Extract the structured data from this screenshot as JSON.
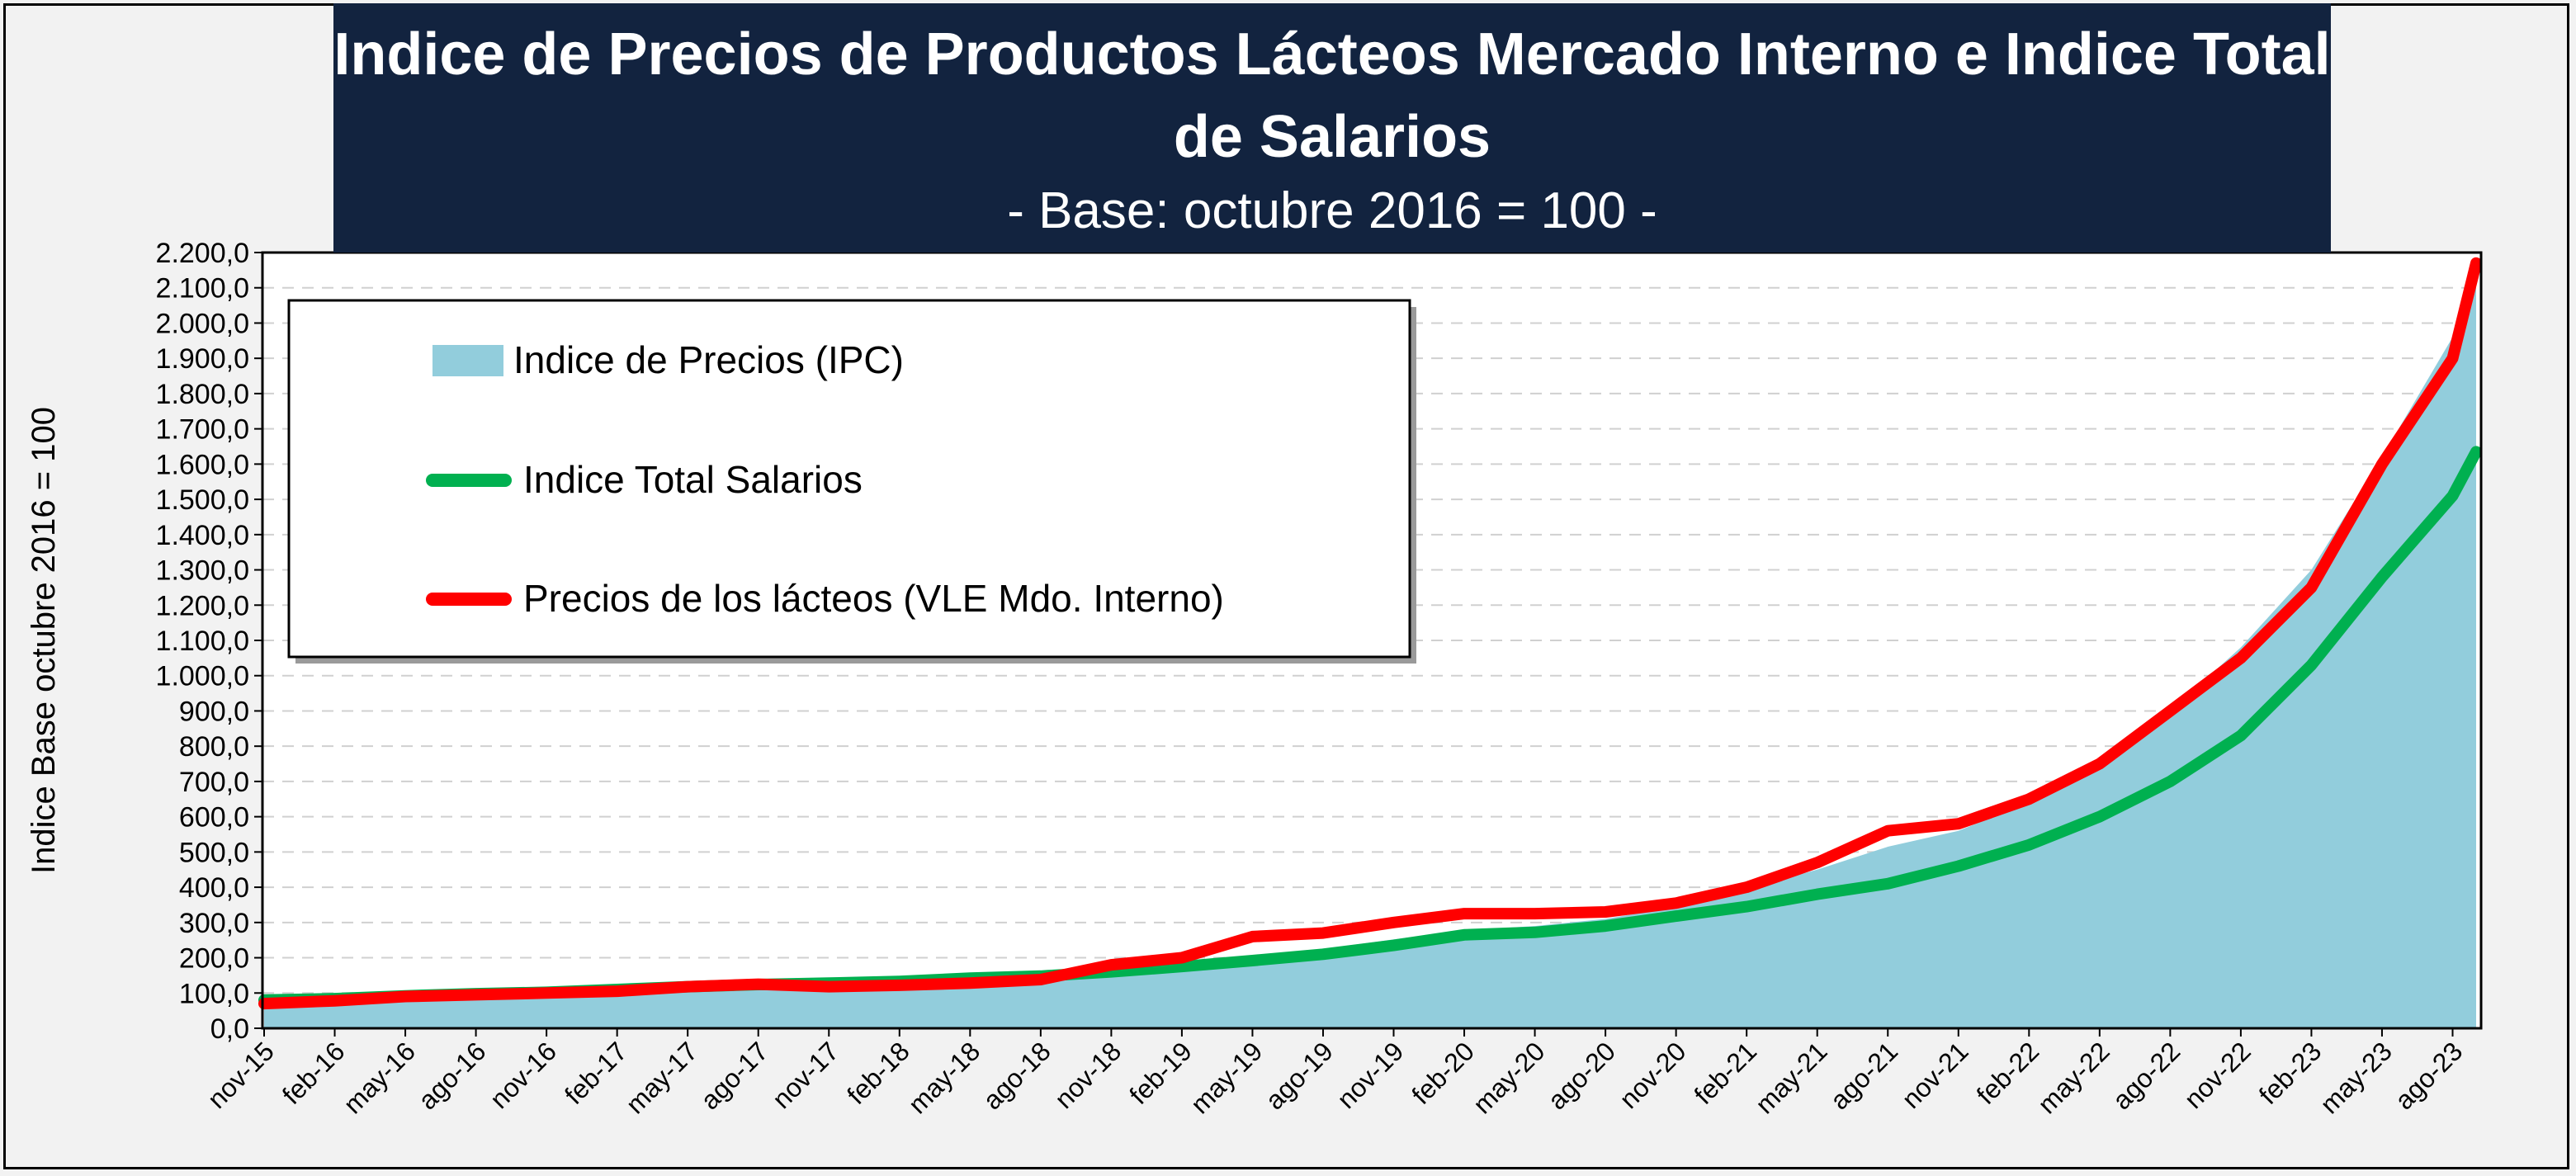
{
  "title": "Indice de Precios de Productos Lácteos Mercado Interno e Indice Total de Salarios",
  "subtitle": "- Base: octubre 2016 = 100 -",
  "colors": {
    "title_bg": "#12233f",
    "ipc_fill": "#92cddc",
    "salarios": "#00b050",
    "lacteos": "#ff0000",
    "grid": "#d0d0d0"
  },
  "chart_data": {
    "type": "area",
    "ylabel": "Indice Base octubre 2016 = 100",
    "ylim": [
      0,
      2200
    ],
    "yticks": [
      "0,0",
      "100,0",
      "200,0",
      "300,0",
      "400,0",
      "500,0",
      "600,0",
      "700,0",
      "800,0",
      "900,0",
      "1.000,0",
      "1.100,0",
      "1.200,0",
      "1.300,0",
      "1.400,0",
      "1.500,0",
      "1.600,0",
      "1.700,0",
      "1.800,0",
      "1.900,0",
      "2.000,0",
      "2.100,0",
      "2.200,0"
    ],
    "xticks": [
      "nov-15",
      "feb-16",
      "may-16",
      "ago-16",
      "nov-16",
      "feb-17",
      "may-17",
      "ago-17",
      "nov-17",
      "feb-18",
      "may-18",
      "ago-18",
      "nov-18",
      "feb-19",
      "may-19",
      "ago-19",
      "nov-19",
      "feb-20",
      "may-20",
      "ago-20",
      "nov-20",
      "feb-21",
      "may-21",
      "ago-21",
      "nov-21",
      "feb-22",
      "may-22",
      "ago-22",
      "nov-22",
      "feb-23",
      "may-23",
      "ago-23"
    ],
    "x_start": "nov-15",
    "x_end": "sep-23",
    "grid": true,
    "legend_position": "top-left",
    "series": [
      {
        "name": "Indice de Precios (IPC)",
        "kind": "area",
        "color": "#92cddc",
        "points": [
          [
            "nov-15",
            78
          ],
          [
            "feb-16",
            84
          ],
          [
            "may-16",
            92
          ],
          [
            "ago-16",
            97
          ],
          [
            "nov-16",
            101
          ],
          [
            "feb-17",
            107
          ],
          [
            "may-17",
            115
          ],
          [
            "ago-17",
            121
          ],
          [
            "nov-17",
            127
          ],
          [
            "feb-18",
            135
          ],
          [
            "may-18",
            145
          ],
          [
            "ago-18",
            160
          ],
          [
            "nov-18",
            172
          ],
          [
            "feb-19",
            188
          ],
          [
            "may-19",
            205
          ],
          [
            "ago-19",
            225
          ],
          [
            "nov-19",
            252
          ],
          [
            "feb-20",
            278
          ],
          [
            "may-20",
            290
          ],
          [
            "ago-20",
            310
          ],
          [
            "nov-20",
            345
          ],
          [
            "feb-21",
            395
          ],
          [
            "may-21",
            450
          ],
          [
            "ago-21",
            515
          ],
          [
            "nov-21",
            560
          ],
          [
            "feb-22",
            640
          ],
          [
            "may-22",
            760
          ],
          [
            "ago-22",
            900
          ],
          [
            "nov-22",
            1080
          ],
          [
            "feb-23",
            1300
          ],
          [
            "may-23",
            1620
          ],
          [
            "ago-23",
            1960
          ],
          [
            "sep-23",
            2170
          ]
        ]
      },
      {
        "name": "Indice Total Salarios",
        "kind": "line",
        "color": "#00b050",
        "points": [
          [
            "nov-15",
            80
          ],
          [
            "feb-16",
            84
          ],
          [
            "may-16",
            92
          ],
          [
            "ago-16",
            98
          ],
          [
            "nov-16",
            102
          ],
          [
            "feb-17",
            110
          ],
          [
            "may-17",
            118
          ],
          [
            "ago-17",
            124
          ],
          [
            "nov-17",
            128
          ],
          [
            "feb-18",
            133
          ],
          [
            "may-18",
            142
          ],
          [
            "ago-18",
            148
          ],
          [
            "nov-18",
            160
          ],
          [
            "feb-19",
            175
          ],
          [
            "may-19",
            192
          ],
          [
            "ago-19",
            210
          ],
          [
            "nov-19",
            235
          ],
          [
            "feb-20",
            265
          ],
          [
            "may-20",
            272
          ],
          [
            "ago-20",
            290
          ],
          [
            "nov-20",
            318
          ],
          [
            "feb-21",
            345
          ],
          [
            "may-21",
            380
          ],
          [
            "ago-21",
            410
          ],
          [
            "nov-21",
            460
          ],
          [
            "feb-22",
            520
          ],
          [
            "may-22",
            600
          ],
          [
            "ago-22",
            700
          ],
          [
            "nov-22",
            830
          ],
          [
            "feb-23",
            1030
          ],
          [
            "may-23",
            1280
          ],
          [
            "ago-23",
            1510
          ],
          [
            "sep-23",
            1635
          ]
        ]
      },
      {
        "name": "Precios de los lácteos (VLE Mdo. Interno)",
        "kind": "line",
        "color": "#ff0000",
        "points": [
          [
            "nov-15",
            70
          ],
          [
            "feb-16",
            78
          ],
          [
            "may-16",
            90
          ],
          [
            "ago-16",
            95
          ],
          [
            "nov-16",
            100
          ],
          [
            "feb-17",
            105
          ],
          [
            "may-17",
            118
          ],
          [
            "ago-17",
            125
          ],
          [
            "nov-17",
            118
          ],
          [
            "feb-18",
            122
          ],
          [
            "may-18",
            128
          ],
          [
            "ago-18",
            138
          ],
          [
            "nov-18",
            180
          ],
          [
            "feb-19",
            200
          ],
          [
            "may-19",
            260
          ],
          [
            "ago-19",
            270
          ],
          [
            "nov-19",
            300
          ],
          [
            "feb-20",
            325
          ],
          [
            "may-20",
            325
          ],
          [
            "ago-20",
            330
          ],
          [
            "nov-20",
            355
          ],
          [
            "feb-21",
            400
          ],
          [
            "may-21",
            470
          ],
          [
            "ago-21",
            560
          ],
          [
            "nov-21",
            580
          ],
          [
            "feb-22",
            650
          ],
          [
            "may-22",
            750
          ],
          [
            "ago-22",
            900
          ],
          [
            "nov-22",
            1050
          ],
          [
            "feb-23",
            1250
          ],
          [
            "may-23",
            1600
          ],
          [
            "ago-23",
            1900
          ],
          [
            "sep-23",
            2170
          ]
        ]
      }
    ]
  }
}
